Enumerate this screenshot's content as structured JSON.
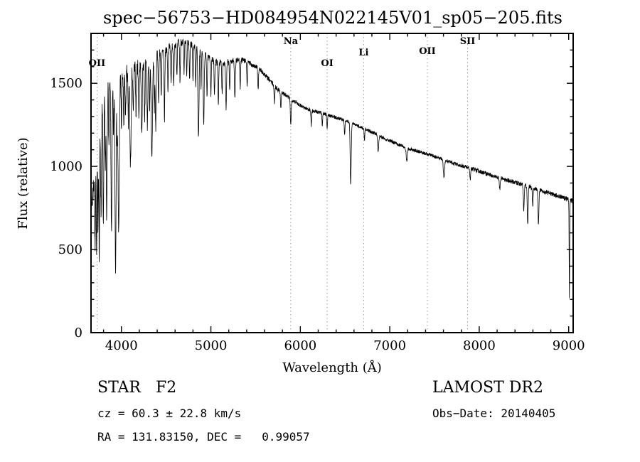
{
  "chart_data": {
    "type": "line",
    "title": "spec−56753−HD084954N022145V01_sp05−205.fits",
    "xlabel": "Wavelength (Å)",
    "ylabel": "Flux (relative)",
    "xlim": [
      3660,
      9050
    ],
    "ylim": [
      0,
      1800
    ],
    "xticks": [
      4000,
      5000,
      6000,
      7000,
      8000,
      9000
    ],
    "yticks": [
      0,
      500,
      1000,
      1500
    ],
    "x_minor_step": 200,
    "y_minor_step": 100,
    "grid": false,
    "line_color": "#000000",
    "marker_line_color": "#999999",
    "noise_seed": 7,
    "line_markers": [
      {
        "label": "OII",
        "wavelength": 3727,
        "label_baseline": 93
      },
      {
        "label": "Na",
        "wavelength": 5893,
        "label_baseline": 62
      },
      {
        "label": "OI",
        "wavelength": 6300,
        "label_baseline": 93
      },
      {
        "label": "Li",
        "wavelength": 6708,
        "label_baseline": 78
      },
      {
        "label": "OII",
        "wavelength": 7420,
        "label_baseline": 76
      },
      {
        "label": "SII",
        "wavelength": 7870,
        "label_baseline": 62
      }
    ],
    "continuum": [
      [
        3660,
        700
      ],
      [
        3690,
        900
      ],
      [
        3720,
        1100
      ],
      [
        3750,
        1250
      ],
      [
        3790,
        1380
      ],
      [
        3840,
        1460
      ],
      [
        3900,
        1505
      ],
      [
        3960,
        1528
      ],
      [
        4000,
        1542
      ],
      [
        4100,
        1572
      ],
      [
        4200,
        1602
      ],
      [
        4300,
        1632
      ],
      [
        4400,
        1666
      ],
      [
        4500,
        1700
      ],
      [
        4600,
        1738
      ],
      [
        4680,
        1752
      ],
      [
        4760,
        1742
      ],
      [
        4850,
        1712
      ],
      [
        4950,
        1662
      ],
      [
        5050,
        1628
      ],
      [
        5150,
        1622
      ],
      [
        5250,
        1636
      ],
      [
        5350,
        1640
      ],
      [
        5450,
        1616
      ],
      [
        5550,
        1582
      ],
      [
        5650,
        1522
      ],
      [
        5750,
        1462
      ],
      [
        5850,
        1422
      ],
      [
        5950,
        1386
      ],
      [
        6050,
        1352
      ],
      [
        6150,
        1332
      ],
      [
        6250,
        1320
      ],
      [
        6350,
        1302
      ],
      [
        6450,
        1286
      ],
      [
        6550,
        1268
      ],
      [
        6650,
        1242
      ],
      [
        6750,
        1218
      ],
      [
        6850,
        1196
      ],
      [
        6950,
        1166
      ],
      [
        7050,
        1142
      ],
      [
        7150,
        1120
      ],
      [
        7250,
        1100
      ],
      [
        7350,
        1086
      ],
      [
        7450,
        1070
      ],
      [
        7550,
        1050
      ],
      [
        7650,
        1030
      ],
      [
        7750,
        1012
      ],
      [
        7850,
        996
      ],
      [
        7950,
        980
      ],
      [
        8050,
        962
      ],
      [
        8150,
        945
      ],
      [
        8250,
        928
      ],
      [
        8350,
        912
      ],
      [
        8450,
        897
      ],
      [
        8550,
        880
      ],
      [
        8650,
        862
      ],
      [
        8750,
        845
      ],
      [
        8850,
        828
      ],
      [
        8950,
        810
      ],
      [
        9050,
        790
      ]
    ],
    "absorption_lines": [
      [
        3705,
        480,
        4
      ],
      [
        3722,
        650,
        4
      ],
      [
        3737,
        520,
        4
      ],
      [
        3752,
        820,
        4
      ],
      [
        3772,
        600,
        5
      ],
      [
        3798,
        760,
        5
      ],
      [
        3820,
        420,
        4
      ],
      [
        3835,
        780,
        5
      ],
      [
        3860,
        360,
        4
      ],
      [
        3889,
        860,
        6
      ],
      [
        3912,
        320,
        4
      ],
      [
        3934,
        1120,
        6
      ],
      [
        3952,
        330,
        4
      ],
      [
        3969,
        940,
        7
      ],
      [
        4000,
        300,
        4
      ],
      [
        4026,
        340,
        4
      ],
      [
        4046,
        260,
        4
      ],
      [
        4077,
        320,
        4
      ],
      [
        4101,
        560,
        7
      ],
      [
        4132,
        280,
        4
      ],
      [
        4163,
        260,
        4
      ],
      [
        4195,
        300,
        4
      ],
      [
        4227,
        430,
        5
      ],
      [
        4260,
        330,
        4
      ],
      [
        4290,
        380,
        5
      ],
      [
        4315,
        330,
        4
      ],
      [
        4340,
        600,
        7
      ],
      [
        4368,
        300,
        4
      ],
      [
        4383,
        430,
        5
      ],
      [
        4415,
        280,
        4
      ],
      [
        4445,
        260,
        4
      ],
      [
        4481,
        420,
        4
      ],
      [
        4520,
        240,
        4
      ],
      [
        4555,
        220,
        4
      ],
      [
        4584,
        260,
        4
      ],
      [
        4620,
        210,
        4
      ],
      [
        4655,
        230,
        4
      ],
      [
        4700,
        200,
        4
      ],
      [
        4730,
        210,
        4
      ],
      [
        4762,
        220,
        4
      ],
      [
        4800,
        200,
        4
      ],
      [
        4830,
        230,
        4
      ],
      [
        4861,
        540,
        6
      ],
      [
        4890,
        210,
        4
      ],
      [
        4920,
        440,
        5
      ],
      [
        4957,
        230,
        4
      ],
      [
        5000,
        210,
        4
      ],
      [
        5040,
        190,
        4
      ],
      [
        5083,
        260,
        4
      ],
      [
        5125,
        180,
        4
      ],
      [
        5170,
        280,
        5
      ],
      [
        5210,
        170,
        4
      ],
      [
        5268,
        220,
        5
      ],
      [
        5328,
        160,
        4
      ],
      [
        5405,
        140,
        4
      ],
      [
        5528,
        130,
        4
      ],
      [
        5710,
        110,
        4
      ],
      [
        5782,
        100,
        4
      ],
      [
        5893,
        150,
        5
      ],
      [
        6122,
        90,
        4
      ],
      [
        6245,
        70,
        4
      ],
      [
        6300,
        80,
        4
      ],
      [
        6495,
        90,
        4
      ],
      [
        6563,
        370,
        6
      ],
      [
        6717,
        70,
        4
      ],
      [
        6870,
        100,
        6
      ],
      [
        7190,
        80,
        7
      ],
      [
        7605,
        100,
        7
      ],
      [
        7900,
        60,
        5
      ],
      [
        8230,
        70,
        5
      ],
      [
        8498,
        150,
        5
      ],
      [
        8542,
        230,
        5
      ],
      [
        8598,
        110,
        4
      ],
      [
        8662,
        210,
        5
      ],
      [
        9008,
        600,
        3
      ]
    ],
    "noise_profile": [
      [
        3660,
        85
      ],
      [
        3800,
        75
      ],
      [
        3950,
        62
      ],
      [
        4100,
        52
      ],
      [
        4300,
        40
      ],
      [
        4500,
        30
      ],
      [
        4800,
        22
      ],
      [
        5200,
        18
      ],
      [
        5600,
        15
      ],
      [
        6000,
        12
      ],
      [
        6500,
        10
      ],
      [
        7000,
        10
      ],
      [
        7600,
        11
      ],
      [
        8200,
        13
      ],
      [
        9050,
        15
      ]
    ]
  },
  "footer": {
    "class_label": "STAR   F2",
    "survey": "LAMOST DR2",
    "cz": "cz = 60.3 ± 22.8 km/s",
    "obs_date": "Obs−Date: 20140405",
    "radec": "RA = 131.83150, DEC =   0.99057"
  }
}
